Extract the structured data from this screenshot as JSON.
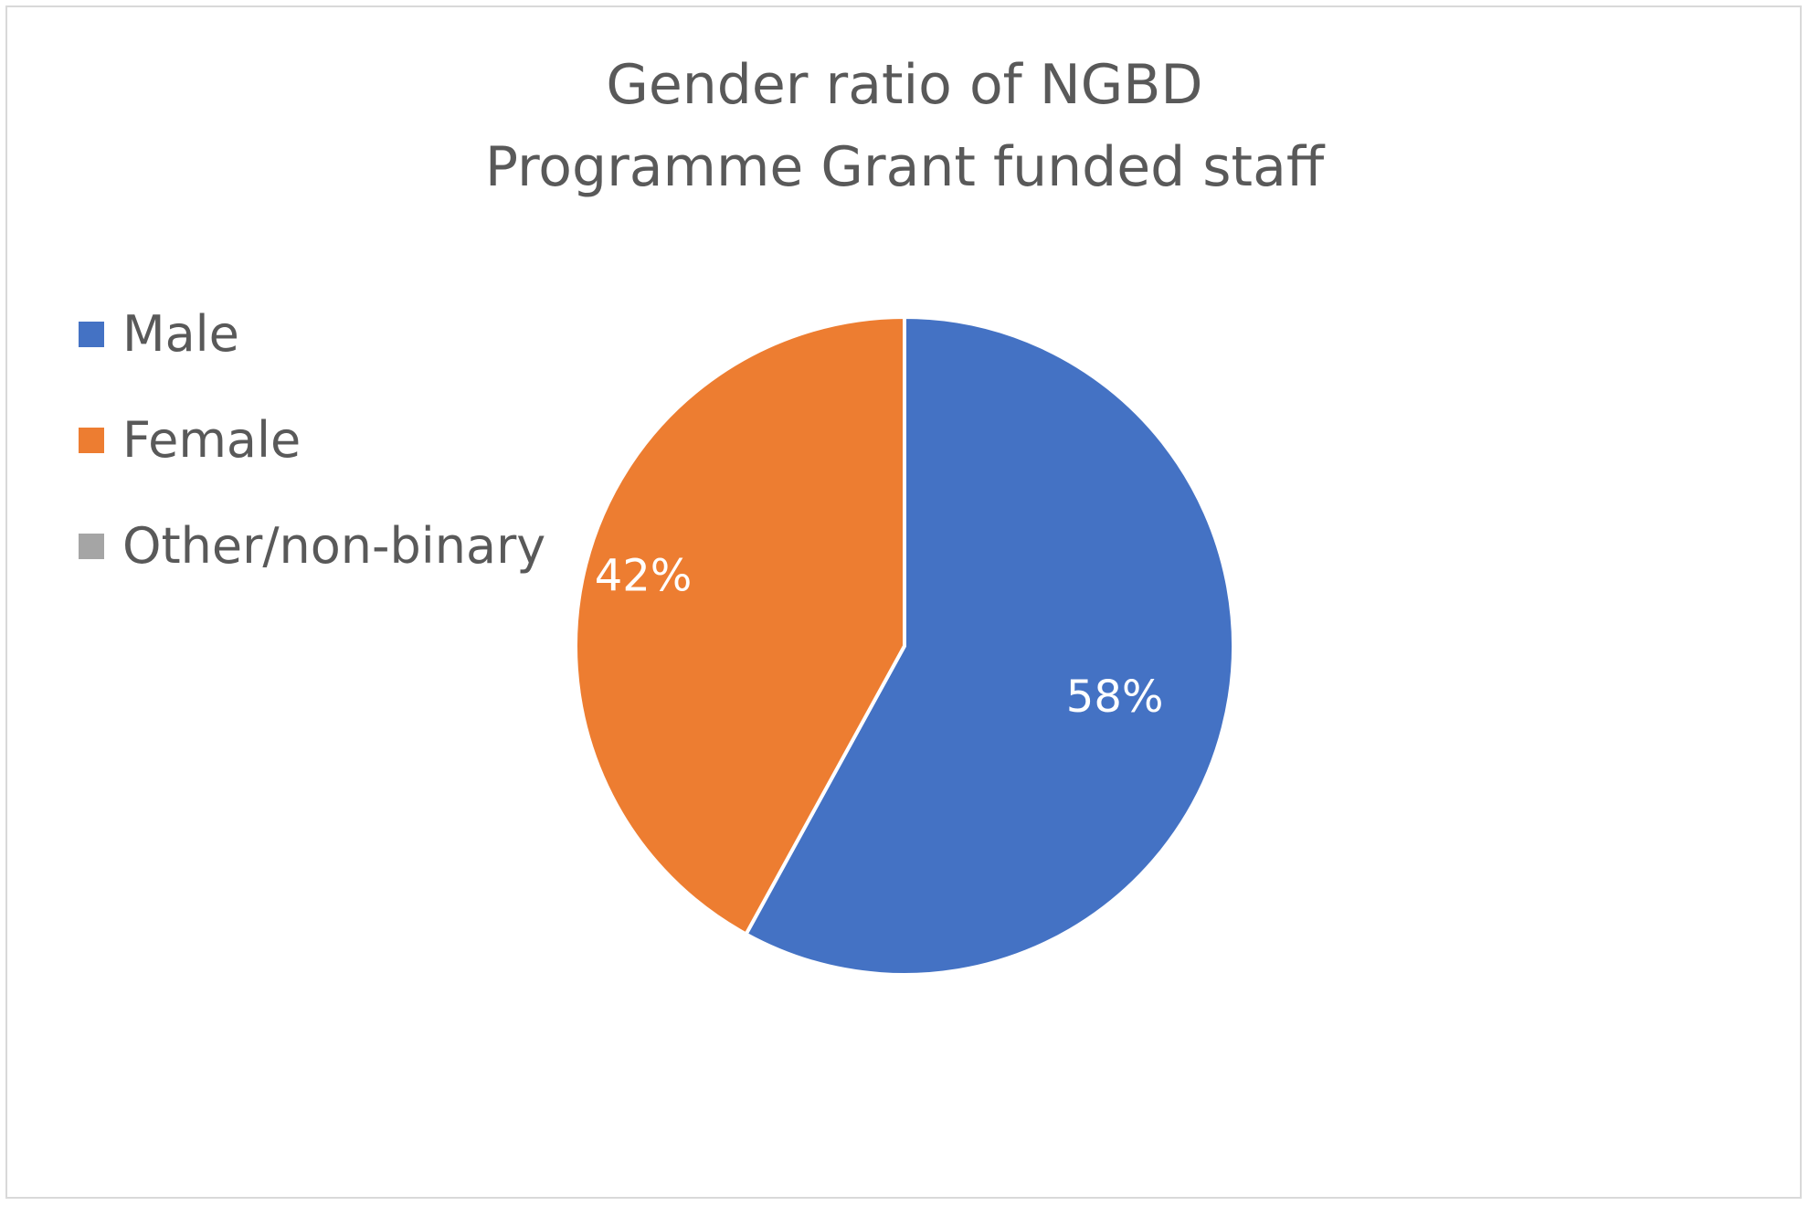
{
  "chart_data": {
    "type": "pie",
    "title": "Gender ratio of NGBD Programme Grant funded staff",
    "title_lines": [
      "Gender ratio of NGBD",
      "Programme Grant funded staff"
    ],
    "legend_position": "left",
    "categories": [
      "Male",
      "Female",
      "Other/non-binary"
    ],
    "values": [
      58,
      42,
      0
    ],
    "data_labels": [
      "58%",
      "42%",
      ""
    ],
    "colors": [
      "#4472C4",
      "#ED7D31",
      "#A5A5A5"
    ]
  }
}
